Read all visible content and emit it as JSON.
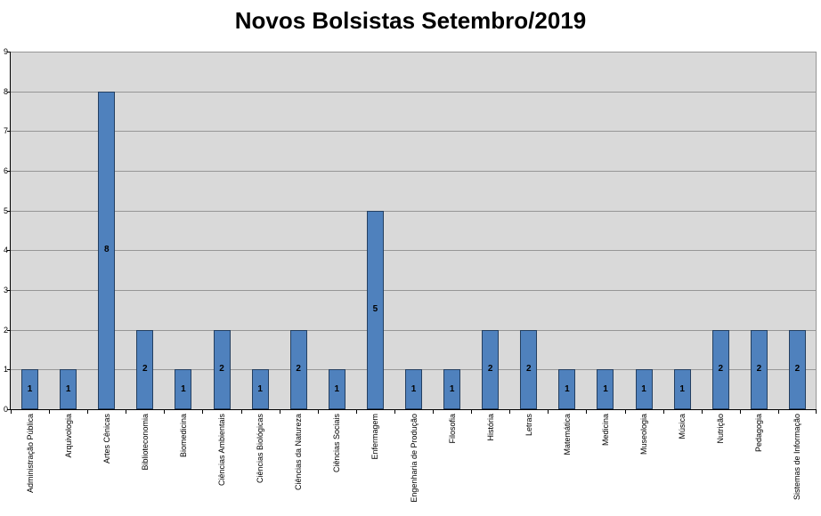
{
  "chart_data": {
    "type": "bar",
    "title": "Novos Bolsistas Setembro/2019",
    "categories": [
      "Administração Pública",
      "Arquivologia",
      "Artes Cênicas",
      "Biblioteconomia",
      "Biomedicina",
      "Ciências Ambientais",
      "Ciências Biológicas",
      "Ciências da Natureza",
      "Ciências Sociais",
      "Enfermagem",
      "Engenharia de Produção",
      "Filosofia",
      "História",
      "Letras",
      "Matemática",
      "Medicina",
      "Museologia",
      "Música",
      "Nutrição",
      "Pedagogia",
      "Sistemas de Informação"
    ],
    "values": [
      1,
      1,
      8,
      2,
      1,
      2,
      1,
      2,
      1,
      5,
      1,
      1,
      2,
      2,
      1,
      1,
      1,
      1,
      2,
      2,
      2
    ],
    "ylim": [
      0,
      9
    ],
    "yticks": [
      0,
      1,
      2,
      3,
      4,
      5,
      6,
      7,
      8,
      9
    ],
    "grid": true,
    "legend": false,
    "data_labels": true,
    "xlabel": "",
    "ylabel": "",
    "colors": {
      "bar_fill": "#4F81BD",
      "bar_border": "#243F60",
      "plot_background": "#D9D9D9",
      "gridline": "#969696",
      "axis_line": "#000000"
    }
  }
}
